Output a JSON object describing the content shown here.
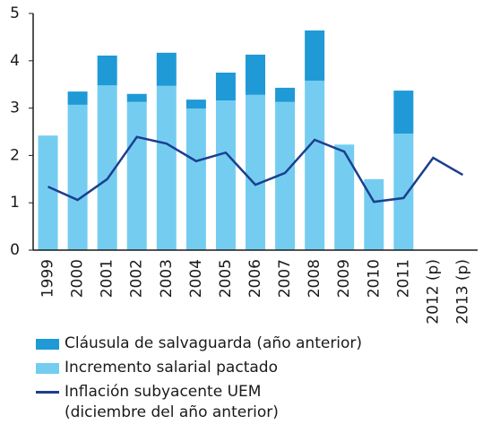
{
  "chart_data": {
    "type": "bar-line",
    "categories": [
      "1999",
      "2000",
      "2001",
      "2002",
      "2003",
      "2004",
      "2005",
      "2006",
      "2007",
      "2008",
      "2009",
      "2010",
      "2011",
      "2012 (p)",
      "2013 (p)"
    ],
    "series": [
      {
        "name": "Cláusula de salvaguarda (año anterior)",
        "type": "bar",
        "color": "#1f9ad6",
        "values": [
          null,
          0.28,
          0.63,
          0.17,
          0.7,
          0.19,
          0.59,
          0.85,
          0.3,
          1.06,
          null,
          null,
          0.91,
          null,
          null
        ]
      },
      {
        "name": "Incremento salarial pactado",
        "type": "bar",
        "color": "#74cdf0",
        "values": [
          2.42,
          3.07,
          3.48,
          3.13,
          3.47,
          2.99,
          3.16,
          3.28,
          3.13,
          3.58,
          2.23,
          1.5,
          2.46,
          null,
          null
        ]
      },
      {
        "name": "Inflación subyacente UEM (diciembre del año anterior)",
        "type": "line",
        "color": "#1b3f8f",
        "values": [
          1.34,
          1.06,
          1.5,
          2.39,
          2.25,
          1.88,
          2.06,
          1.38,
          1.63,
          2.33,
          2.08,
          1.02,
          1.1,
          1.95,
          1.59
        ]
      }
    ],
    "ylim": [
      0,
      5
    ],
    "yticks": [
      0,
      1,
      2,
      3,
      4,
      5
    ],
    "grid": false
  }
}
